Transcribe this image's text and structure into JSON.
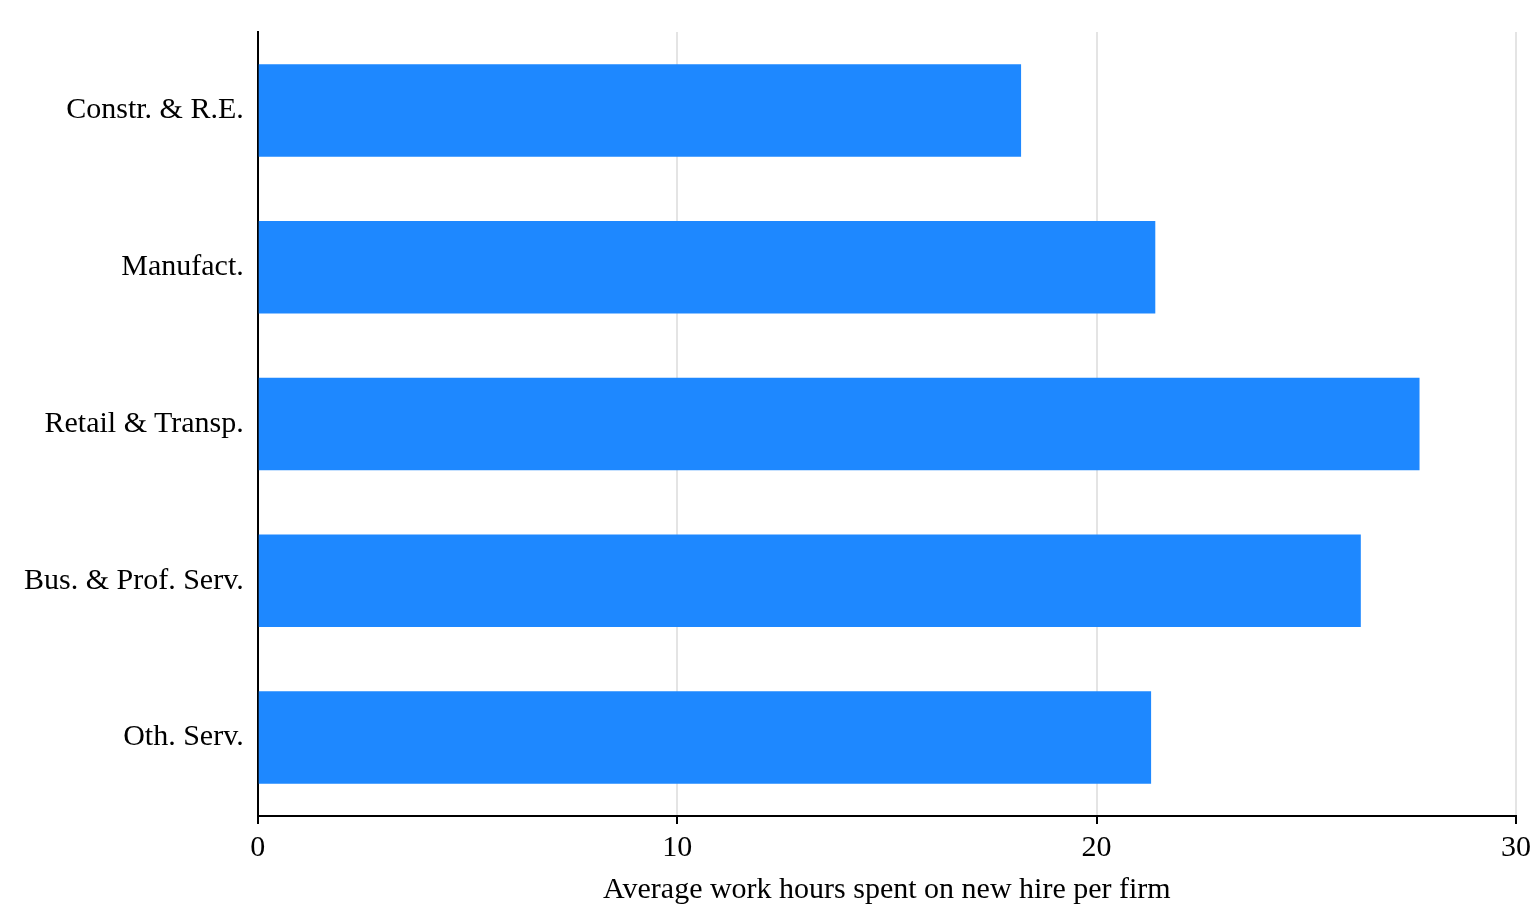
{
  "chart_data": {
    "type": "bar",
    "orientation": "horizontal",
    "xlabel": "Average work hours spent on new hire per firm",
    "categories": [
      "Constr. & R.E.",
      "Manufact.",
      "Retail & Transp.",
      "Bus. & Prof. Serv.",
      "Oth. Serv."
    ],
    "values": [
      18.2,
      21.4,
      27.7,
      26.3,
      21.3
    ],
    "color": "#1e88ff",
    "xlim": [
      0,
      30
    ],
    "xticks": [
      0,
      10,
      20,
      30
    ],
    "grid": "x",
    "legend": false
  }
}
